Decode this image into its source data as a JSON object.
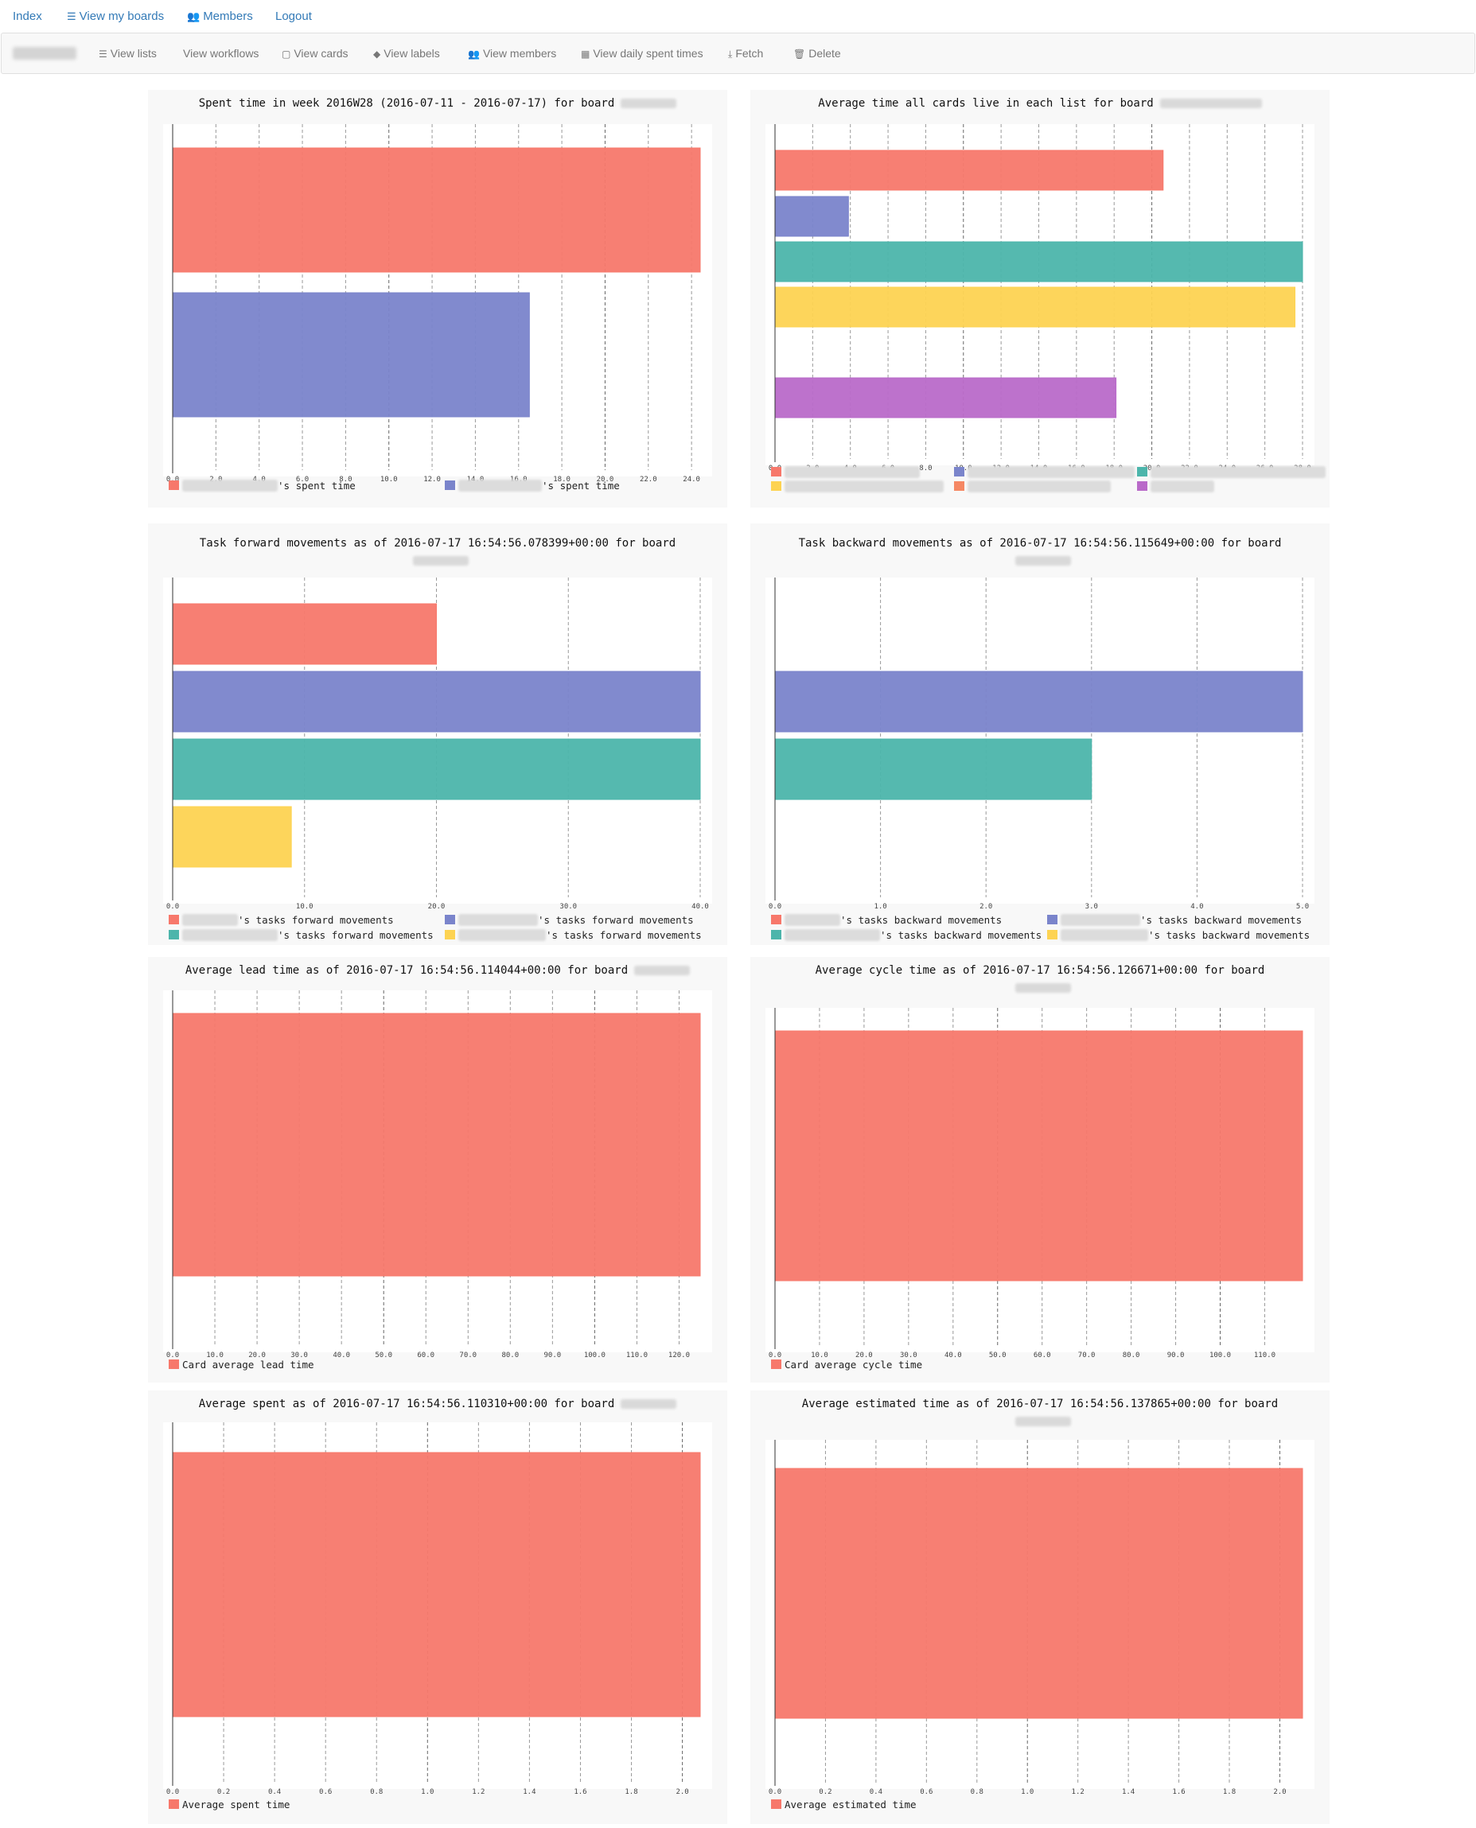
{
  "nav": {
    "index": "Index",
    "boards": "View my boards",
    "members": "Members",
    "logout": "Logout"
  },
  "toolbar": {
    "lists": "View lists",
    "workflows": "View workflows",
    "cards": "View cards",
    "labels": "View labels",
    "members": "View members",
    "daily": "View daily spent times",
    "fetch": "Fetch",
    "delete": "Delete"
  },
  "colors": {
    "red": "#f7786b",
    "blue": "#7a84cb",
    "teal": "#4cb5ab",
    "yellow": "#fdd352",
    "orange": "#f58864",
    "purple": "#b96ac9"
  },
  "panels": [
    {
      "title_lines": [
        "Spent time in week 2016W28 (2016-07-11 - 2016-07-17) for board"
      ],
      "legend": [
        {
          "suffix": "'s spent time",
          "color": "red"
        },
        {
          "suffix": "'s spent time",
          "color": "blue"
        }
      ]
    },
    {
      "title_lines": [
        "Average time all cards live in each list for board"
      ],
      "legend": [
        {
          "suffix": "",
          "color": "red"
        },
        {
          "suffix": "",
          "color": "blue"
        },
        {
          "suffix": "",
          "color": "teal"
        },
        {
          "suffix": "",
          "color": "yellow"
        },
        {
          "suffix": "",
          "color": "orange"
        },
        {
          "suffix": "",
          "color": "purple"
        }
      ]
    },
    {
      "title_lines": [
        "Task forward movements as of 2016-07-17 16:54:56.078399+00:00 for board"
      ],
      "legend": [
        {
          "suffix": "'s tasks forward movements",
          "color": "red"
        },
        {
          "suffix": "'s tasks forward movements",
          "color": "blue"
        },
        {
          "suffix": "'s tasks forward movements",
          "color": "teal"
        },
        {
          "suffix": "'s tasks forward movements",
          "color": "yellow"
        }
      ]
    },
    {
      "title_lines": [
        "Task backward movements as of 2016-07-17 16:54:56.115649+00:00 for board"
      ],
      "legend": [
        {
          "suffix": "'s tasks backward movements",
          "color": "red"
        },
        {
          "suffix": "'s tasks backward movements",
          "color": "blue"
        },
        {
          "suffix": "'s tasks backward movements",
          "color": "teal"
        },
        {
          "suffix": "'s tasks backward movements",
          "color": "yellow"
        }
      ]
    },
    {
      "title_lines": [
        "Average lead time as of 2016-07-17 16:54:56.114044+00:00 for board"
      ],
      "legend": [
        {
          "suffix": "Card average lead time",
          "color": "red"
        }
      ]
    },
    {
      "title_lines": [
        "Average cycle time as of 2016-07-17 16:54:56.126671+00:00 for board"
      ],
      "legend": [
        {
          "suffix": "Card average cycle time",
          "color": "red"
        }
      ]
    },
    {
      "title_lines": [
        "Average spent as of 2016-07-17 16:54:56.110310+00:00 for board"
      ],
      "legend": [
        {
          "suffix": "Average spent time",
          "color": "red"
        }
      ]
    },
    {
      "title_lines": [
        "Average estimated time as of 2016-07-17 16:54:56.137865+00:00 for board"
      ],
      "legend": [
        {
          "suffix": "Average estimated time",
          "color": "red"
        }
      ]
    }
  ],
  "chart_data": [
    {
      "type": "bar",
      "orientation": "horizontal",
      "x_ticks": [
        "0.0",
        "2.0",
        "4.0",
        "6.0",
        "8.0",
        "10.0",
        "12.0",
        "14.0",
        "16.0",
        "18.0",
        "20.0",
        "22.0",
        "24.0"
      ],
      "xlim": [
        0,
        24.4
      ],
      "series": [
        {
          "values": [
            24.4
          ],
          "color": "red"
        },
        {
          "values": [
            16.5
          ],
          "color": "blue"
        }
      ]
    },
    {
      "type": "bar",
      "orientation": "horizontal",
      "x_ticks": [
        "0.0",
        "2.0",
        "4.0",
        "6.0",
        "8.0",
        "10.0",
        "12.0",
        "14.0",
        "16.0",
        "18.0",
        "20.0",
        "22.0",
        "24.0",
        "26.0",
        "28.0"
      ],
      "xlim": [
        0,
        28.0
      ],
      "series": [
        {
          "values": [
            20.6
          ],
          "color": "red"
        },
        {
          "values": [
            3.9
          ],
          "color": "blue"
        },
        {
          "values": [
            28.0
          ],
          "color": "teal"
        },
        {
          "values": [
            27.6
          ],
          "color": "yellow"
        },
        {
          "values": [
            0
          ],
          "color": "orange"
        },
        {
          "values": [
            18.1
          ],
          "color": "purple"
        }
      ]
    },
    {
      "type": "bar",
      "orientation": "horizontal",
      "x_ticks": [
        "0.0",
        "10.0",
        "20.0",
        "30.0",
        "40.0"
      ],
      "xlim": [
        0,
        40
      ],
      "series": [
        {
          "values": [
            20
          ],
          "color": "red"
        },
        {
          "values": [
            40
          ],
          "color": "blue"
        },
        {
          "values": [
            40
          ],
          "color": "teal"
        },
        {
          "values": [
            9
          ],
          "color": "yellow"
        }
      ]
    },
    {
      "type": "bar",
      "orientation": "horizontal",
      "x_ticks": [
        "0.0",
        "1.0",
        "2.0",
        "3.0",
        "4.0",
        "5.0"
      ],
      "xlim": [
        0,
        5
      ],
      "series": [
        {
          "values": [
            0
          ],
          "color": "red"
        },
        {
          "values": [
            5
          ],
          "color": "blue"
        },
        {
          "values": [
            3
          ],
          "color": "teal"
        },
        {
          "values": [
            0
          ],
          "color": "yellow"
        }
      ]
    },
    {
      "type": "bar",
      "orientation": "horizontal",
      "x_ticks": [
        "0.0",
        "10.0",
        "20.0",
        "30.0",
        "40.0",
        "50.0",
        "60.0",
        "70.0",
        "80.0",
        "90.0",
        "100.0",
        "110.0",
        "120.0"
      ],
      "xlim": [
        0,
        125
      ],
      "series": [
        {
          "values": [
            125
          ],
          "color": "red"
        }
      ]
    },
    {
      "type": "bar",
      "orientation": "horizontal",
      "x_ticks": [
        "0.0",
        "10.0",
        "20.0",
        "30.0",
        "40.0",
        "50.0",
        "60.0",
        "70.0",
        "80.0",
        "90.0",
        "100.0",
        "110.0"
      ],
      "xlim": [
        0,
        118.5
      ],
      "series": [
        {
          "values": [
            118.5
          ],
          "color": "red"
        }
      ]
    },
    {
      "type": "bar",
      "orientation": "horizontal",
      "x_ticks": [
        "0.0",
        "0.2",
        "0.4",
        "0.6",
        "0.8",
        "1.0",
        "1.2",
        "1.4",
        "1.6",
        "1.8",
        "2.0"
      ],
      "xlim": [
        0,
        2.07
      ],
      "series": [
        {
          "values": [
            2.07
          ],
          "color": "red"
        }
      ]
    },
    {
      "type": "bar",
      "orientation": "horizontal",
      "x_ticks": [
        "0.0",
        "0.2",
        "0.4",
        "0.6",
        "0.8",
        "1.0",
        "1.2",
        "1.4",
        "1.6",
        "1.8",
        "2.0"
      ],
      "xlim": [
        0,
        2.09
      ],
      "series": [
        {
          "values": [
            2.09
          ],
          "color": "red"
        }
      ]
    }
  ]
}
